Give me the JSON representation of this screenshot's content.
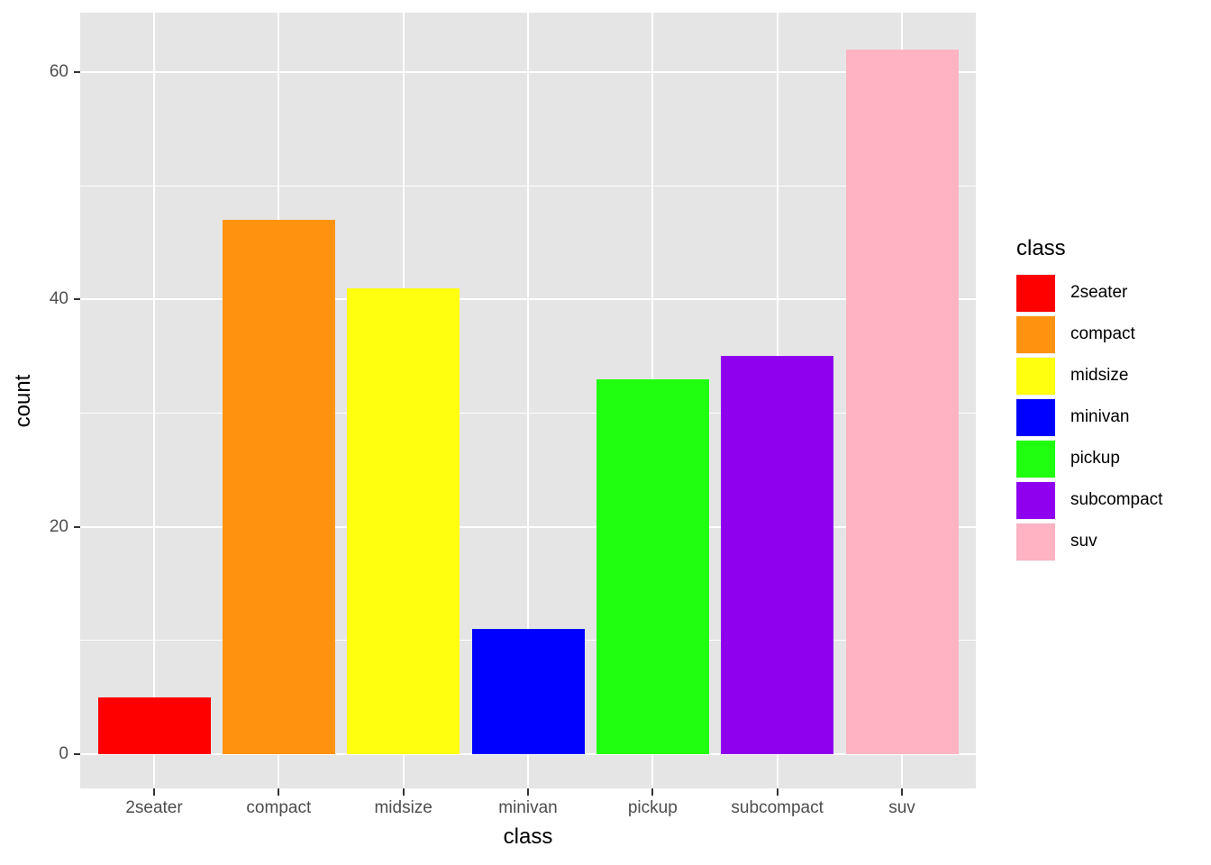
{
  "chart_data": {
    "type": "bar",
    "title": "",
    "xlabel": "class",
    "ylabel": "count",
    "categories": [
      "2seater",
      "compact",
      "midsize",
      "minivan",
      "pickup",
      "subcompact",
      "suv"
    ],
    "values": [
      5,
      47,
      41,
      11,
      33,
      35,
      62
    ],
    "colors": [
      "#ff0000",
      "#ff930f",
      "#ffff0f",
      "#0000ff",
      "#1fff0f",
      "#8f00ee",
      "#ffb3c3"
    ],
    "yticks": [
      0,
      20,
      40,
      60
    ],
    "ylim": [
      -3.1,
      65.1
    ],
    "grid": true,
    "legend": {
      "title": "class",
      "position": "right",
      "entries": [
        "2seater",
        "compact",
        "midsize",
        "minivan",
        "pickup",
        "subcompact",
        "suv"
      ]
    }
  },
  "axis": {
    "x_title": "class",
    "y_title": "count",
    "y_tick_labels": [
      "0",
      "20",
      "40",
      "60"
    ]
  }
}
